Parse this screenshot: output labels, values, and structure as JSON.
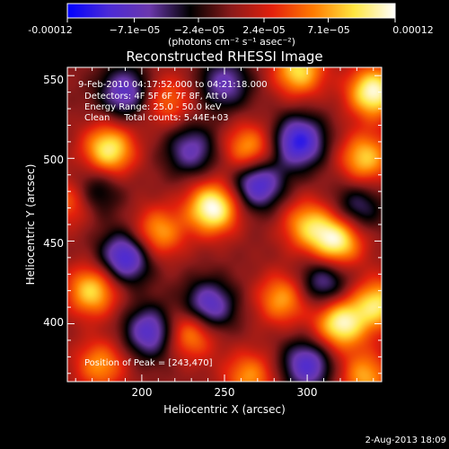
{
  "colorbar": {
    "tick_labels": [
      "-0.00012",
      "−7.1e−05",
      "−2.4e−05",
      "2.4e−05",
      "7.1e−05",
      "0.00012"
    ],
    "units": "(photons cm⁻² s⁻¹ asec⁻²)",
    "colors": [
      "#0000ff",
      "#4b2ad6",
      "#6b38ad",
      "#000000",
      "#8a1a1a",
      "#e3200c",
      "#ff7a00",
      "#ffe640",
      "#ffffff"
    ],
    "range": [
      -0.00012,
      0.00012
    ]
  },
  "chart_data": {
    "type": "heatmap",
    "title": "Reconstructed RHESSI Image",
    "xlabel": "Heliocentric X (arcsec)",
    "ylabel": "Heliocentric Y (arcsec)",
    "xlim": [
      155,
      345
    ],
    "ylim": [
      365,
      555
    ],
    "x_ticks": [
      200,
      250,
      300
    ],
    "y_ticks": [
      400,
      450,
      500,
      550
    ],
    "annotations": [
      "9-Feb-2010 04:17:52.000 to 04:21:18.000",
      "Detectors: 4F 5F 6F 7F 8F, Att 0",
      "Energy Range: 25.0 - 50.0 keV",
      "Clean     Total counts: 5.44E+03"
    ],
    "peak_label": "Position of Peak = [243,470]",
    "peak": [
      243,
      470
    ],
    "blobs": [
      {
        "x": 243,
        "y": 470,
        "v": 1.0
      },
      {
        "x": 340,
        "y": 540,
        "v": 0.95
      },
      {
        "x": 295,
        "y": 553,
        "v": 0.75
      },
      {
        "x": 180,
        "y": 505,
        "v": 0.85
      },
      {
        "x": 265,
        "y": 505,
        "v": 0.65
      },
      {
        "x": 335,
        "y": 500,
        "v": 0.7
      },
      {
        "x": 210,
        "y": 455,
        "v": 0.6
      },
      {
        "x": 318,
        "y": 450,
        "v": 0.9
      },
      {
        "x": 300,
        "y": 460,
        "v": 0.6
      },
      {
        "x": 170,
        "y": 420,
        "v": 0.75
      },
      {
        "x": 285,
        "y": 415,
        "v": 0.6
      },
      {
        "x": 343,
        "y": 412,
        "v": 0.75
      },
      {
        "x": 230,
        "y": 395,
        "v": 0.65
      },
      {
        "x": 320,
        "y": 400,
        "v": 0.9
      },
      {
        "x": 175,
        "y": 375,
        "v": 0.55
      },
      {
        "x": 265,
        "y": 368,
        "v": 0.55
      },
      {
        "x": 335,
        "y": 368,
        "v": 0.6
      },
      {
        "x": 215,
        "y": 535,
        "v": 0.45
      },
      {
        "x": 158,
        "y": 475,
        "v": 0.55
      },
      {
        "x": 190,
        "y": 440,
        "v": -0.8
      },
      {
        "x": 270,
        "y": 485,
        "v": -0.8
      },
      {
        "x": 295,
        "y": 510,
        "v": -0.85
      },
      {
        "x": 240,
        "y": 410,
        "v": -0.75
      },
      {
        "x": 205,
        "y": 395,
        "v": -0.7
      },
      {
        "x": 300,
        "y": 375,
        "v": -0.7
      },
      {
        "x": 310,
        "y": 425,
        "v": -0.55
      },
      {
        "x": 190,
        "y": 540,
        "v": -0.65
      },
      {
        "x": 250,
        "y": 545,
        "v": -0.55
      },
      {
        "x": 330,
        "y": 470,
        "v": -0.45
      },
      {
        "x": 170,
        "y": 480,
        "v": -0.5
      },
      {
        "x": 230,
        "y": 505,
        "v": -0.55
      }
    ]
  },
  "footer": {
    "date": "2-Aug-2013 18:09"
  }
}
